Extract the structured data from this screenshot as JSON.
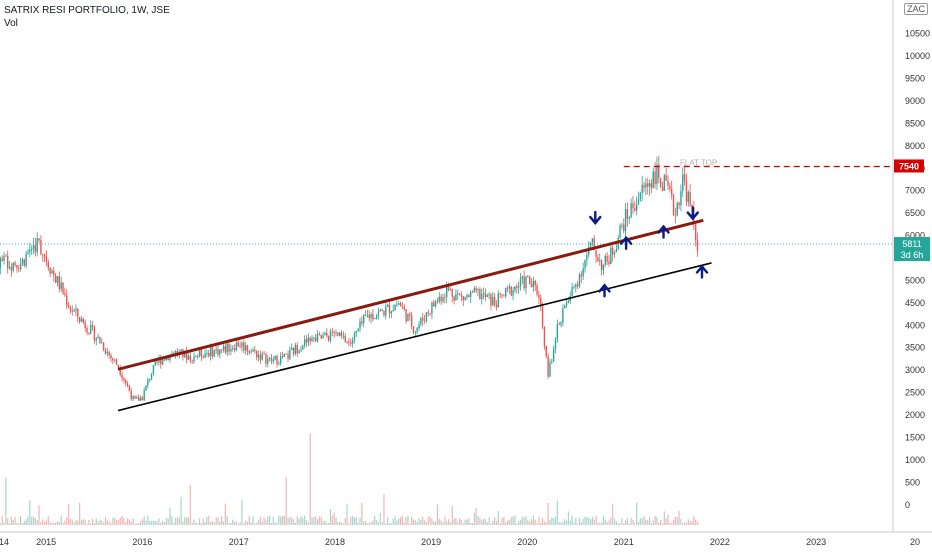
{
  "header": {
    "title": "SATRIX RESI PORTFOLIO, 1W, JSE",
    "volume_label": "Vol",
    "currency": "ZAC"
  },
  "colors": {
    "up": "#26a69a",
    "down": "#ef5350",
    "vol_up": "#a5d6d0",
    "vol_down": "#f5b5b3",
    "upper_trendline": "#8b1a0e",
    "lower_trendline": "#000000",
    "arrow": "#0b1a86",
    "resistance": "#d50000",
    "last_price": "#26a69a",
    "grid_text": "#333333"
  },
  "chart_data": {
    "type": "candlestick",
    "title": "SATRIX RESI PORTFOLIO, 1W, JSE",
    "series_close_approx": [
      [
        "2014-10-01",
        5400
      ],
      [
        "2014-11-01",
        5700
      ],
      [
        "2014-12-01",
        5850
      ],
      [
        "2015-01-01",
        5500
      ],
      [
        "2015-02-01",
        5100
      ],
      [
        "2015-03-01",
        4800
      ],
      [
        "2015-04-01",
        4400
      ],
      [
        "2015-05-01",
        4200
      ],
      [
        "2015-06-01",
        4000
      ],
      [
        "2015-07-01",
        3800
      ],
      [
        "2015-08-01",
        3600
      ],
      [
        "2015-09-01",
        3300
      ],
      [
        "2015-10-01",
        3100
      ],
      [
        "2015-11-01",
        2700
      ],
      [
        "2015-12-01",
        2300
      ],
      [
        "2016-01-01",
        2400
      ],
      [
        "2016-02-01",
        2900
      ],
      [
        "2016-03-01",
        3200
      ],
      [
        "2016-05-01",
        3400
      ],
      [
        "2016-07-01",
        3300
      ],
      [
        "2016-09-01",
        3400
      ],
      [
        "2016-11-01",
        3450
      ],
      [
        "2017-01-01",
        3600
      ],
      [
        "2017-03-01",
        3400
      ],
      [
        "2017-05-01",
        3200
      ],
      [
        "2017-07-01",
        3300
      ],
      [
        "2017-09-01",
        3600
      ],
      [
        "2017-11-01",
        3700
      ],
      [
        "2018-01-01",
        3800
      ],
      [
        "2018-03-01",
        3600
      ],
      [
        "2018-05-01",
        4200
      ],
      [
        "2018-07-01",
        4300
      ],
      [
        "2018-09-01",
        4500
      ],
      [
        "2018-11-01",
        3900
      ],
      [
        "2019-01-01",
        4400
      ],
      [
        "2019-03-01",
        4800
      ],
      [
        "2019-05-01",
        4600
      ],
      [
        "2019-07-01",
        4700
      ],
      [
        "2019-09-01",
        4500
      ],
      [
        "2019-11-01",
        4800
      ],
      [
        "2020-01-01",
        5000
      ],
      [
        "2020-02-15",
        4700
      ],
      [
        "2020-03-20",
        2900
      ],
      [
        "2020-05-01",
        4100
      ],
      [
        "2020-07-01",
        4900
      ],
      [
        "2020-09-01",
        5800
      ],
      [
        "2020-10-15",
        5300
      ],
      [
        "2020-11-15",
        5600
      ],
      [
        "2021-01-01",
        6300
      ],
      [
        "2021-03-01",
        6900
      ],
      [
        "2021-05-01",
        7400
      ],
      [
        "2021-06-15",
        7000
      ],
      [
        "2021-07-15",
        6500
      ],
      [
        "2021-08-15",
        7300
      ],
      [
        "2021-09-15",
        6500
      ],
      [
        "2021-10-08",
        5811
      ]
    ],
    "y_axis": {
      "min": -250,
      "max": 11250,
      "ticks": [
        0,
        500,
        1000,
        1500,
        2000,
        2500,
        3000,
        3500,
        4000,
        4500,
        5000,
        5500,
        6000,
        6500,
        7000,
        7500,
        8000,
        8500,
        9000,
        9500,
        10000,
        10500
      ]
    },
    "x_axis": {
      "start": "2014-01-01",
      "end": "2023-12-31",
      "tick_labels": [
        "14",
        "2015",
        "2016",
        "2017",
        "2018",
        "2019",
        "2020",
        "2021",
        "2022",
        "2023",
        "20"
      ]
    },
    "resistance": {
      "value": 7540,
      "label": "7540",
      "annotation": "FLAT TOP",
      "from": "2021-01-01"
    },
    "last_price": {
      "value": 5811,
      "label": "5811",
      "countdown": "3d 6h"
    },
    "trendlines": [
      {
        "name": "upper",
        "from": [
          "2015-10-01",
          3020
        ],
        "to": [
          "2021-10-30",
          6340
        ]
      },
      {
        "name": "lower",
        "from": [
          "2015-10-01",
          2100
        ],
        "to": [
          "2021-11-30",
          5390
        ]
      }
    ],
    "arrows": [
      {
        "date": "2020-09-15",
        "value": 6390,
        "dir": "down"
      },
      {
        "date": "2020-10-20",
        "value": 4780,
        "dir": "up"
      },
      {
        "date": "2021-01-10",
        "value": 5840,
        "dir": "up"
      },
      {
        "date": "2021-06-01",
        "value": 6090,
        "dir": "up"
      },
      {
        "date": "2021-09-20",
        "value": 6490,
        "dir": "down"
      },
      {
        "date": "2021-10-25",
        "value": 5200,
        "dir": "up"
      }
    ],
    "volume_spikes": [
      {
        "date": "2017-10-01",
        "value": 2500
      },
      {
        "date": "2017-07-01",
        "value": 1300
      },
      {
        "date": "2016-07-01",
        "value": 1100
      },
      {
        "date": "2014-08-01",
        "value": 1300
      },
      {
        "date": "2020-03-20",
        "value": 600
      }
    ],
    "legend": "none",
    "grid": false
  }
}
